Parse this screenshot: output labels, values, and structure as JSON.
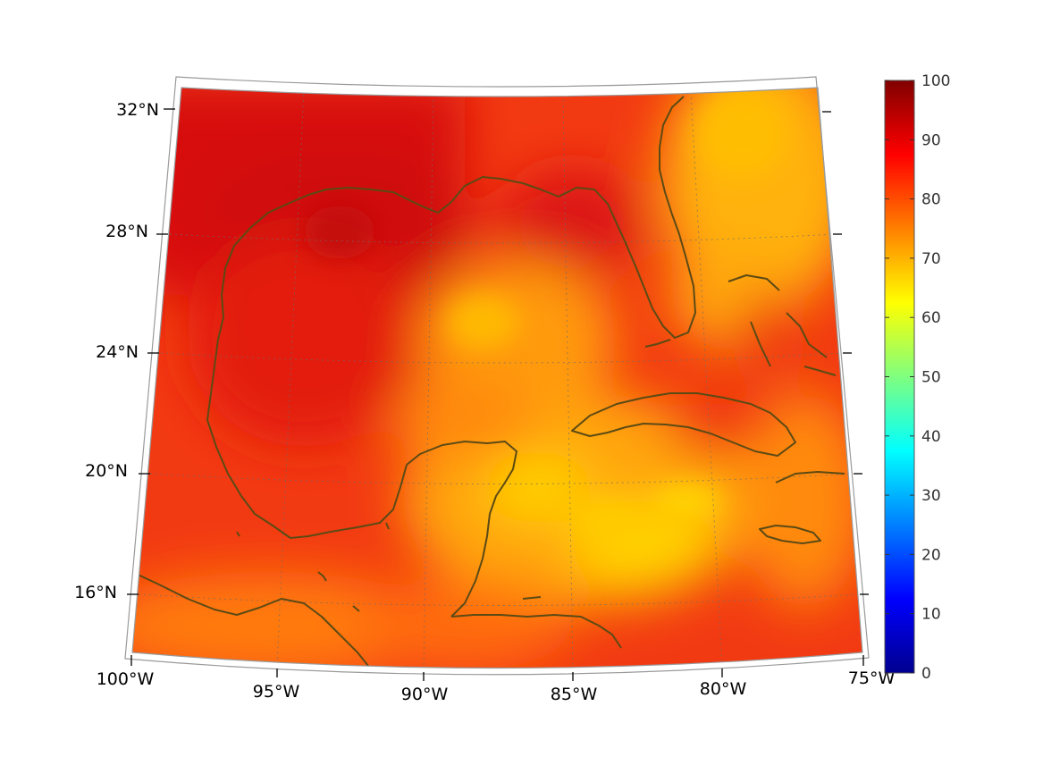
{
  "map": {
    "region": "Gulf of Mexico and Caribbean",
    "projection": "conic",
    "lat_labels": [
      "32°N",
      "28°N",
      "24°N",
      "20°N",
      "16°N"
    ],
    "lon_labels": [
      "100°W",
      "95°W",
      "90°W",
      "85°W",
      "80°W",
      "75°W"
    ],
    "coastline_color": "#5c4a14",
    "grid": "dotted"
  },
  "colorbar": {
    "colormap": "jet",
    "min": 0,
    "max": 100,
    "tick_labels": [
      "100",
      "90",
      "80",
      "70",
      "60",
      "50",
      "40",
      "30",
      "20",
      "10",
      "0"
    ]
  },
  "field": {
    "description_range": [
      60,
      98
    ]
  }
}
